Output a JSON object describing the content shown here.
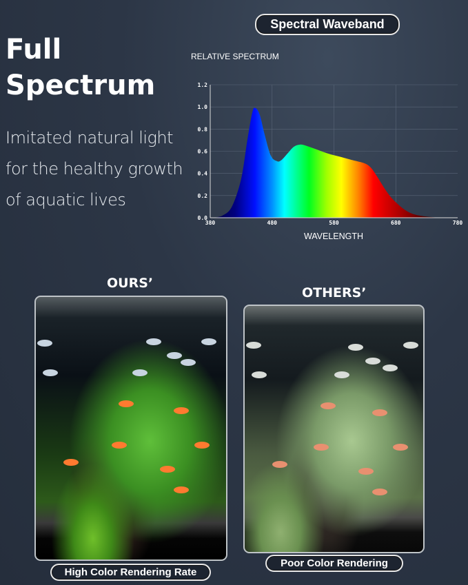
{
  "header": {
    "title_line1": "Full",
    "title_line2": "Spectrum",
    "subtitle": "Imitated natural light for the healthy growth of aquatic lives",
    "waveband_label": "Spectral Waveband"
  },
  "chart_data": {
    "type": "area",
    "title": "RELATIVE SPECTRUM",
    "xlabel": "WAVELENGTH",
    "ylabel": "",
    "xlim": [
      380,
      780
    ],
    "ylim": [
      0,
      1.2
    ],
    "xticks": [
      "380",
      "480",
      "580",
      "680",
      "780"
    ],
    "yticks": [
      "0.0",
      "0.2",
      "0.4",
      "0.6",
      "0.8",
      "1.0",
      "1.2"
    ],
    "grid": true,
    "fill": "visible-spectrum-gradient",
    "x": [
      385,
      400,
      415,
      430,
      440,
      448,
      453,
      460,
      468,
      478,
      488,
      495,
      505,
      515,
      525,
      535,
      550,
      570,
      590,
      610,
      630,
      640,
      650,
      660,
      670,
      680,
      695,
      710,
      730,
      755,
      775
    ],
    "y": [
      0.0,
      0.02,
      0.1,
      0.35,
      0.7,
      0.95,
      0.99,
      0.93,
      0.75,
      0.56,
      0.51,
      0.52,
      0.58,
      0.64,
      0.66,
      0.65,
      0.62,
      0.58,
      0.55,
      0.52,
      0.49,
      0.45,
      0.37,
      0.28,
      0.2,
      0.14,
      0.07,
      0.03,
      0.01,
      0.0,
      0.0
    ]
  },
  "comparison": {
    "ours_heading": "OURS’",
    "ours_label": "High Color Rendering Rate",
    "others_heading": "OTHERS’",
    "others_label": "Poor Color Rendering"
  }
}
